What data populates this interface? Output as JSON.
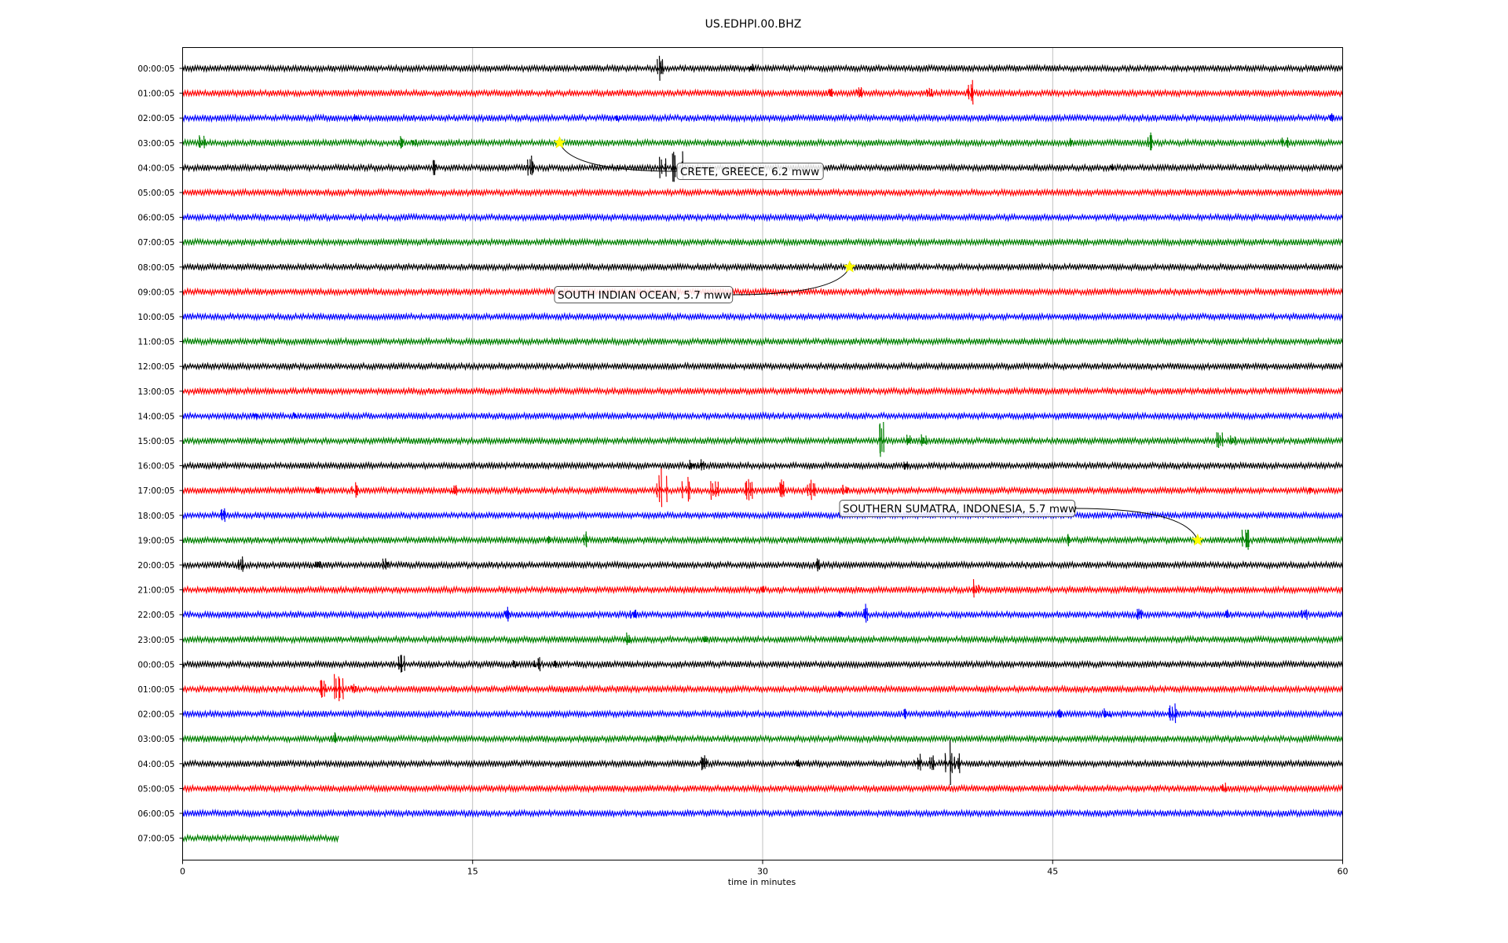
{
  "chart_data": {
    "type": "line",
    "title": "US.EDHPI.00.BHZ",
    "xlabel": "time in minutes",
    "ylabel": "",
    "xlim": [
      0,
      60
    ],
    "x_ticks": [
      "0",
      "15",
      "30",
      "45",
      "60"
    ],
    "x_tick_values": [
      0,
      15,
      30,
      45,
      60
    ],
    "grid": "vertical lines at x ticks",
    "trace_colors": [
      "#000000",
      "#ff0000",
      "#0000ff",
      "#008000"
    ],
    "last_row_end_minute": 8.1,
    "rows": [
      {
        "label": "00:00:05",
        "events": [
          {
            "t": 24.6,
            "a": 22
          },
          {
            "t": 29.4,
            "a": 6
          }
        ]
      },
      {
        "label": "01:00:05",
        "events": [
          {
            "t": 33.5,
            "a": 12
          },
          {
            "t": 35.0,
            "a": 11
          },
          {
            "t": 38.6,
            "a": 10
          },
          {
            "t": 40.8,
            "a": 18
          }
        ]
      },
      {
        "label": "02:00:05",
        "events": [
          {
            "t": 9.0,
            "a": 6
          },
          {
            "t": 22.5,
            "a": 5
          },
          {
            "t": 59.4,
            "a": 6
          }
        ]
      },
      {
        "label": "03:00:05",
        "events": [
          {
            "t": 1.0,
            "a": 14
          },
          {
            "t": 11.3,
            "a": 10
          },
          {
            "t": 12.0,
            "a": 10
          },
          {
            "t": 46.0,
            "a": 10
          },
          {
            "t": 50.0,
            "a": 14
          },
          {
            "t": 57.0,
            "a": 10
          }
        ]
      },
      {
        "label": "04:00:05",
        "events": [
          {
            "t": 13.0,
            "a": 14
          },
          {
            "t": 18.0,
            "a": 16
          },
          {
            "t": 24.8,
            "a": 20
          },
          {
            "t": 25.6,
            "a": 30
          },
          {
            "t": 48.0,
            "a": 6
          }
        ]
      },
      {
        "label": "05:00:05",
        "events": []
      },
      {
        "label": "06:00:05",
        "events": []
      },
      {
        "label": "07:00:05",
        "events": []
      },
      {
        "label": "08:00:05",
        "events": []
      },
      {
        "label": "09:00:05",
        "events": []
      },
      {
        "label": "10:00:05",
        "events": []
      },
      {
        "label": "11:00:05",
        "events": []
      },
      {
        "label": "12:00:05",
        "events": []
      },
      {
        "label": "13:00:05",
        "events": []
      },
      {
        "label": "14:00:05",
        "events": [
          {
            "t": 3.8,
            "a": 5
          },
          {
            "t": 5.8,
            "a": 7
          }
        ]
      },
      {
        "label": "15:00:05",
        "events": [
          {
            "t": 36.4,
            "a": 40
          },
          {
            "t": 37.5,
            "a": 12
          },
          {
            "t": 38.3,
            "a": 10
          },
          {
            "t": 53.6,
            "a": 16
          },
          {
            "t": 54.3,
            "a": 8
          }
        ]
      },
      {
        "label": "16:00:05",
        "events": [
          {
            "t": 26.3,
            "a": 8
          },
          {
            "t": 26.8,
            "a": 10
          },
          {
            "t": 37.4,
            "a": 8
          }
        ]
      },
      {
        "label": "17:00:05",
        "events": [
          {
            "t": 7.0,
            "a": 10
          },
          {
            "t": 8.9,
            "a": 12
          },
          {
            "t": 14.0,
            "a": 14
          },
          {
            "t": 24.8,
            "a": 30
          },
          {
            "t": 26.0,
            "a": 22
          },
          {
            "t": 27.5,
            "a": 18
          },
          {
            "t": 29.3,
            "a": 18
          },
          {
            "t": 30.9,
            "a": 18
          },
          {
            "t": 32.5,
            "a": 16
          },
          {
            "t": 34.3,
            "a": 14
          },
          {
            "t": 58.3,
            "a": 6
          }
        ]
      },
      {
        "label": "18:00:05",
        "events": [
          {
            "t": 2.0,
            "a": 12
          },
          {
            "t": 42.5,
            "a": 5
          }
        ]
      },
      {
        "label": "19:00:05",
        "events": [
          {
            "t": 18.9,
            "a": 6
          },
          {
            "t": 20.8,
            "a": 12
          },
          {
            "t": 22.4,
            "a": 8
          },
          {
            "t": 45.8,
            "a": 12
          },
          {
            "t": 55.0,
            "a": 20
          }
        ]
      },
      {
        "label": "20:00:05",
        "events": [
          {
            "t": 3.0,
            "a": 12
          },
          {
            "t": 7.0,
            "a": 8
          },
          {
            "t": 10.5,
            "a": 12
          },
          {
            "t": 32.8,
            "a": 12
          }
        ]
      },
      {
        "label": "21:00:05",
        "events": [
          {
            "t": 30.0,
            "a": 8
          },
          {
            "t": 41.0,
            "a": 14
          }
        ]
      },
      {
        "label": "22:00:05",
        "events": [
          {
            "t": 16.8,
            "a": 10
          },
          {
            "t": 23.3,
            "a": 12
          },
          {
            "t": 34.0,
            "a": 6
          },
          {
            "t": 35.3,
            "a": 14
          },
          {
            "t": 49.5,
            "a": 14
          },
          {
            "t": 54.0,
            "a": 8
          },
          {
            "t": 58.0,
            "a": 10
          }
        ]
      },
      {
        "label": "23:00:05",
        "events": [
          {
            "t": 23.0,
            "a": 10
          },
          {
            "t": 27.0,
            "a": 8
          }
        ]
      },
      {
        "label": "00:00:05",
        "events": [
          {
            "t": 11.3,
            "a": 18
          },
          {
            "t": 17.2,
            "a": 10
          },
          {
            "t": 18.3,
            "a": 12
          },
          {
            "t": 19.2,
            "a": 8
          }
        ]
      },
      {
        "label": "01:00:05",
        "events": [
          {
            "t": 7.3,
            "a": 24
          },
          {
            "t": 8.1,
            "a": 28
          },
          {
            "t": 8.8,
            "a": 10
          }
        ]
      },
      {
        "label": "02:00:05",
        "events": [
          {
            "t": 37.3,
            "a": 10
          },
          {
            "t": 45.3,
            "a": 10
          },
          {
            "t": 47.8,
            "a": 10
          },
          {
            "t": 51.2,
            "a": 16
          }
        ]
      },
      {
        "label": "03:00:05",
        "events": [
          {
            "t": 7.8,
            "a": 12
          },
          {
            "t": 24.7,
            "a": 5
          }
        ]
      },
      {
        "label": "04:00:05",
        "events": [
          {
            "t": 26.9,
            "a": 16
          },
          {
            "t": 31.8,
            "a": 8
          },
          {
            "t": 38.0,
            "a": 14
          },
          {
            "t": 38.8,
            "a": 12
          },
          {
            "t": 39.5,
            "a": 30
          },
          {
            "t": 40.0,
            "a": 14
          }
        ]
      },
      {
        "label": "05:00:05",
        "events": [
          {
            "t": 53.8,
            "a": 8
          }
        ]
      },
      {
        "label": "06:00:05",
        "events": []
      },
      {
        "label": "07:00:05",
        "events": []
      }
    ],
    "annotations": [
      {
        "text": "CRETE, GREECE, 6.2 mww",
        "row": 3,
        "x": 19.5
      },
      {
        "text": "SOUTH INDIAN OCEAN, 5.7 mww",
        "row": 8,
        "x": 34.5
      },
      {
        "text": "SOUTHERN SUMATRA, INDONESIA, 5.7 mww",
        "row": 19,
        "x": 52.5
      }
    ]
  }
}
